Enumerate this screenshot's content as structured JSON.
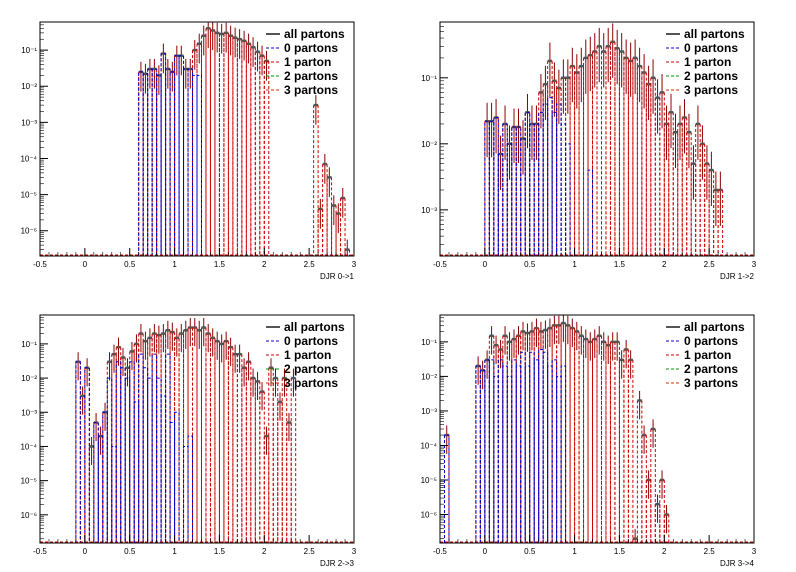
{
  "legend_entries": [
    "all partons",
    "0 partons",
    "1 parton",
    "2 partons",
    "3 partons"
  ],
  "colors": {
    "all": "#555555",
    "zero": "#0000cc",
    "one": "#cc0000",
    "two": "#009900",
    "three": "#cc3300",
    "error": "#8b0000"
  },
  "chart_data": [
    {
      "type": "bar",
      "title": "",
      "xlabel": "DJR 0->1",
      "log_y": true,
      "xlim": [
        -0.5,
        3
      ],
      "ylim": [
        2e-07,
        0.6
      ],
      "xticks": [
        "-0.5",
        "0",
        "0.5",
        "1",
        "1.5",
        "2",
        "2.5",
        "3"
      ],
      "yticks": [
        "10^-6",
        "10^-5",
        "10^-4",
        "10^-3",
        "10^-2",
        "10^-1"
      ],
      "legend_position": "top-right",
      "x": [
        0.6,
        0.65,
        0.7,
        0.75,
        0.8,
        0.85,
        0.9,
        0.95,
        1.0,
        1.05,
        1.1,
        1.15,
        1.2,
        1.25,
        1.3,
        1.35,
        1.4,
        1.45,
        1.5,
        1.55,
        1.6,
        1.65,
        1.7,
        1.75,
        1.8,
        1.85,
        1.9,
        1.95,
        2.0,
        2.55,
        2.6,
        2.65,
        2.7,
        2.75,
        2.8,
        2.85,
        2.9
      ],
      "series": [
        {
          "name": "all partons",
          "values": [
            0.025,
            0.022,
            0.03,
            0.03,
            0.02,
            0.08,
            0.03,
            0.025,
            0.07,
            0.07,
            0.03,
            0.03,
            0.1,
            0.15,
            0.25,
            0.4,
            0.35,
            0.3,
            0.28,
            0.3,
            0.25,
            0.22,
            0.2,
            0.18,
            0.15,
            0.12,
            0.09,
            0.07,
            0.05,
            0.003,
            4e-06,
            7e-05,
            3e-05,
            5e-06,
            3e-06,
            8e-06,
            3e-07
          ]
        },
        {
          "name": "0 partons",
          "values": [
            0.025,
            0.022,
            0.03,
            0.03,
            0.02,
            0.08,
            0.03,
            0.025,
            0.07,
            0.07,
            0.03,
            0.03,
            0.02,
            0.02,
            0,
            0,
            0,
            0,
            0,
            0,
            0,
            0,
            0,
            0,
            0,
            0,
            0,
            0,
            0,
            0,
            0,
            0,
            0,
            0,
            0,
            0,
            0
          ]
        }
      ]
    },
    {
      "type": "bar",
      "title": "",
      "xlabel": "DJR 1->2",
      "log_y": true,
      "xlim": [
        -0.5,
        3
      ],
      "ylim": [
        0.0002,
        0.7
      ],
      "xticks": [
        "-0.5",
        "0",
        "0.5",
        "1",
        "1.5",
        "2",
        "2.5",
        "3"
      ],
      "yticks": [
        "10^-3",
        "10^-2",
        "10^-1"
      ],
      "legend_position": "top-right",
      "x": [
        0.0,
        0.05,
        0.1,
        0.15,
        0.2,
        0.25,
        0.3,
        0.35,
        0.4,
        0.45,
        0.5,
        0.55,
        0.6,
        0.65,
        0.7,
        0.75,
        0.8,
        0.85,
        0.9,
        0.95,
        1.0,
        1.05,
        1.1,
        1.15,
        1.2,
        1.25,
        1.3,
        1.35,
        1.4,
        1.45,
        1.5,
        1.55,
        1.6,
        1.65,
        1.7,
        1.75,
        1.8,
        1.85,
        1.9,
        1.95,
        2.0,
        2.05,
        2.1,
        2.15,
        2.2,
        2.25,
        2.3,
        2.35,
        2.4,
        2.45,
        2.5,
        2.55,
        2.6
      ],
      "series": [
        {
          "name": "all partons",
          "values": [
            0.022,
            0.022,
            0.025,
            0.007,
            0.02,
            0.01,
            0.018,
            0.018,
            0.012,
            0.03,
            0.02,
            0.02,
            0.06,
            0.08,
            0.18,
            0.09,
            0.07,
            0.1,
            0.1,
            0.15,
            0.12,
            0.15,
            0.2,
            0.22,
            0.25,
            0.3,
            0.25,
            0.3,
            0.35,
            0.28,
            0.25,
            0.2,
            0.18,
            0.2,
            0.15,
            0.12,
            0.08,
            0.1,
            0.05,
            0.06,
            0.02,
            0.03,
            0.015,
            0.02,
            0.025,
            0.015,
            0.005,
            0.02,
            0.01,
            0.005,
            0.004,
            0.002,
            0.002
          ]
        },
        {
          "name": "0 partons",
          "values": [
            0.022,
            0.022,
            0.025,
            0.007,
            0.02,
            0.01,
            0.018,
            0.018,
            0.012,
            0.03,
            0.02,
            0.02,
            0.03,
            0.04,
            0.05,
            0.03,
            0.04,
            0.02,
            0.01,
            0,
            0,
            0,
            0,
            0.004,
            0,
            0,
            0,
            0,
            0,
            0,
            0,
            0,
            0,
            0,
            0,
            0,
            0,
            0,
            0,
            0,
            0,
            0,
            0,
            0,
            0,
            0,
            0,
            0,
            0,
            0,
            0,
            0,
            0
          ]
        }
      ]
    },
    {
      "type": "bar",
      "title": "",
      "xlabel": "DJR 2->3",
      "log_y": true,
      "xlim": [
        -0.5,
        3
      ],
      "ylim": [
        1.5e-07,
        0.7
      ],
      "xticks": [
        "-0.5",
        "0",
        "0.5",
        "1",
        "1.5",
        "2",
        "2.5",
        "3"
      ],
      "yticks": [
        "10^-6",
        "10^-5",
        "10^-4",
        "10^-3",
        "10^-2",
        "10^-1"
      ],
      "legend_position": "top-right",
      "x": [
        -0.1,
        -0.05,
        0.0,
        0.05,
        0.1,
        0.15,
        0.2,
        0.25,
        0.3,
        0.35,
        0.4,
        0.45,
        0.5,
        0.55,
        0.6,
        0.65,
        0.7,
        0.75,
        0.8,
        0.85,
        0.9,
        0.95,
        1.0,
        1.05,
        1.1,
        1.15,
        1.2,
        1.25,
        1.3,
        1.35,
        1.4,
        1.45,
        1.5,
        1.55,
        1.6,
        1.65,
        1.7,
        1.75,
        1.8,
        1.85,
        1.9,
        1.95,
        2.0,
        2.05,
        2.1,
        2.15,
        2.2,
        2.25,
        2.3
      ],
      "series": [
        {
          "name": "all partons",
          "values": [
            0.03,
            0.003,
            0.02,
            0.0001,
            0.0005,
            0.0002,
            0.001,
            0.03,
            0.05,
            0.08,
            0.04,
            0.02,
            0.06,
            0.1,
            0.2,
            0.12,
            0.15,
            0.2,
            0.18,
            0.2,
            0.25,
            0.22,
            0.15,
            0.2,
            0.25,
            0.3,
            0.3,
            0.25,
            0.3,
            0.2,
            0.15,
            0.12,
            0.1,
            0.12,
            0.08,
            0.05,
            0.05,
            0.02,
            0.03,
            0.01,
            0.008,
            0.004,
            0.0002,
            0.02,
            0.01,
            0.002,
            0.01,
            0.0005,
            0.01
          ]
        },
        {
          "name": "0 partons",
          "values": [
            0.03,
            0,
            0.02,
            0,
            0.0005,
            0.0002,
            0.001,
            0.01,
            0.0001,
            0.03,
            0.02,
            0.01,
            0.03,
            0.002,
            0.05,
            0.02,
            0.01,
            0.05,
            0.01,
            0.003,
            0.05,
            0.0005,
            0.001,
            0,
            0.0001,
            0.0002,
            0,
            0,
            0,
            0,
            0,
            0,
            0,
            0,
            0,
            0,
            0,
            0,
            0,
            0,
            0,
            0,
            0,
            0,
            0,
            0,
            0,
            0,
            0
          ]
        }
      ]
    },
    {
      "type": "bar",
      "title": "",
      "xlabel": "DJR 3->4",
      "log_y": true,
      "xlim": [
        -0.5,
        3
      ],
      "ylim": [
        1.5e-07,
        0.6
      ],
      "xticks": [
        "-0.5",
        "0",
        "0.5",
        "1",
        "1.5",
        "2",
        "2.5",
        "3"
      ],
      "yticks": [
        "10^-6",
        "10^-5",
        "10^-4",
        "10^-3",
        "10^-2",
        "10^-1"
      ],
      "legend_position": "top-right",
      "x": [
        -0.45,
        -0.1,
        -0.05,
        0.0,
        0.05,
        0.1,
        0.15,
        0.2,
        0.25,
        0.3,
        0.35,
        0.4,
        0.45,
        0.5,
        0.55,
        0.6,
        0.65,
        0.7,
        0.75,
        0.8,
        0.85,
        0.9,
        0.95,
        1.0,
        1.05,
        1.1,
        1.15,
        1.2,
        1.25,
        1.3,
        1.35,
        1.4,
        1.45,
        1.5,
        1.55,
        1.6,
        1.65,
        1.7,
        1.75,
        1.8,
        1.85,
        1.9,
        1.95,
        2.0
      ],
      "series": [
        {
          "name": "all partons",
          "values": [
            0.0002,
            0.02,
            0.015,
            0.03,
            0.15,
            0.08,
            0.06,
            0.15,
            0.1,
            0.12,
            0.15,
            0.2,
            0.18,
            0.2,
            0.25,
            0.2,
            0.22,
            0.25,
            0.3,
            0.3,
            0.35,
            0.3,
            0.25,
            0.2,
            0.15,
            0.12,
            0.1,
            0.12,
            0.15,
            0.1,
            0.08,
            0.1,
            0.1,
            0.03,
            0.06,
            0.03,
            2e-07,
            0.002,
            0.0002,
            1e-05,
            0.0003,
            2e-06,
            1e-05,
            1e-06
          ]
        },
        {
          "name": "0 partons",
          "values": [
            0.0002,
            0.02,
            0.015,
            0.03,
            0.03,
            0.01,
            0.03,
            0.02,
            0.01,
            0.03,
            0.02,
            0.05,
            0.02,
            0.05,
            0.03,
            0.06,
            0.05,
            0.02,
            0.03,
            0.01,
            0.02,
            0,
            0,
            0,
            0,
            0,
            0,
            0,
            0,
            0,
            0,
            0,
            0,
            0,
            0,
            0,
            0,
            0,
            0,
            0,
            0,
            0,
            0,
            0
          ]
        }
      ]
    }
  ]
}
